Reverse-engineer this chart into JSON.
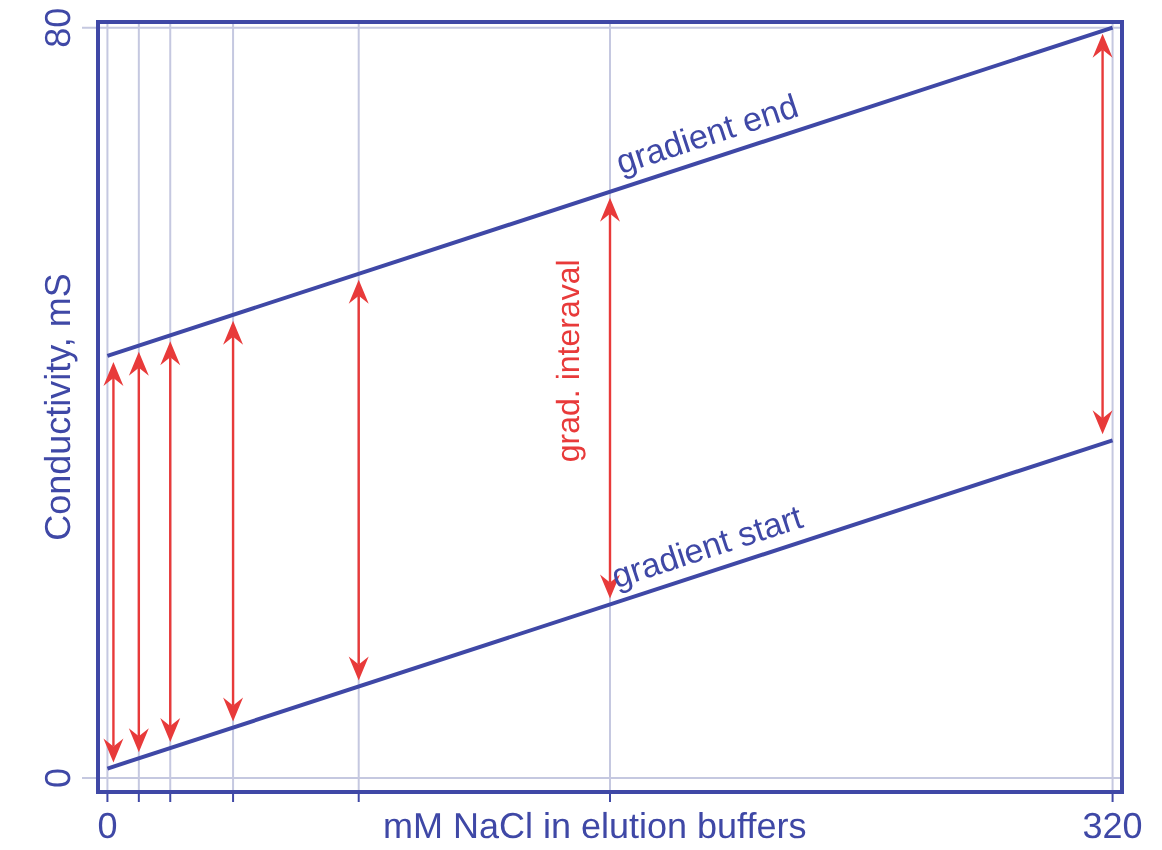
{
  "chart_data": {
    "type": "line",
    "xlabel": "mM NaCl in elution buffers",
    "ylabel": "Conductivity, mS",
    "xlim": [
      -3,
      323
    ],
    "ylim": [
      -1.5,
      80.6
    ],
    "xticks": [
      0,
      {
        "value": 10,
        "label": null
      },
      {
        "value": 20,
        "label": null
      },
      {
        "value": 40,
        "label": null
      },
      {
        "value": 80,
        "label": null
      },
      {
        "value": 160,
        "label": null
      },
      320
    ],
    "yticks": [
      0,
      80
    ],
    "grid": true,
    "marker": "none",
    "line_style": "solid",
    "x": [
      0,
      320
    ],
    "series": [
      {
        "name": "gradient start",
        "color": "#3f48a6",
        "values": [
          1,
          36
        ]
      },
      {
        "name": "gradient end",
        "color": "#3f48a6",
        "values": [
          45,
          80
        ]
      }
    ],
    "annotations": [
      "grad. interaval"
    ]
  }
}
